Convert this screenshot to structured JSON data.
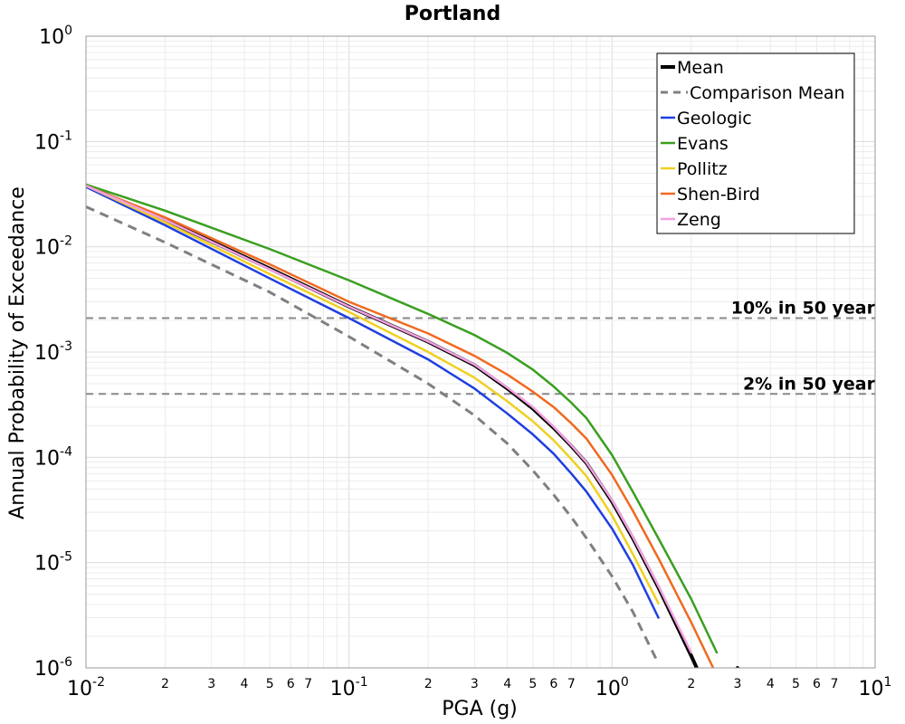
{
  "chart_data": {
    "type": "line",
    "title": "Portland",
    "xlabel": "PGA (g)",
    "ylabel": "Annual Probability of Exceedance",
    "x_scale": "log",
    "y_scale": "log",
    "xlim": [
      0.01,
      10
    ],
    "ylim": [
      1e-06,
      1
    ],
    "grid": true,
    "legend_position": "top-right",
    "x_major_ticks": [
      {
        "base": "10",
        "exp": "-2",
        "value": 0.01
      },
      {
        "base": "10",
        "exp": "-1",
        "value": 0.1
      },
      {
        "base": "10",
        "exp": "0",
        "value": 1
      },
      {
        "base": "10",
        "exp": "1",
        "value": 10
      }
    ],
    "y_major_ticks": [
      {
        "base": "10",
        "exp": "0",
        "value": 1
      },
      {
        "base": "10",
        "exp": "-1",
        "value": 0.1
      },
      {
        "base": "10",
        "exp": "-2",
        "value": 0.01
      },
      {
        "base": "10",
        "exp": "-3",
        "value": 0.001
      },
      {
        "base": "10",
        "exp": "-4",
        "value": 0.0001
      },
      {
        "base": "10",
        "exp": "-5",
        "value": 1e-05
      },
      {
        "base": "10",
        "exp": "-6",
        "value": 1e-06
      }
    ],
    "x_minor_tick_labels": [
      "2",
      "3",
      "4",
      "5",
      "6",
      "7"
    ],
    "reference_lines": [
      {
        "label": "10% in 50 year",
        "y": 0.0021,
        "color": "#888888"
      },
      {
        "label": "2% in 50 year",
        "y": 0.0004,
        "color": "#888888"
      }
    ],
    "x": [
      0.01,
      0.02,
      0.05,
      0.1,
      0.2,
      0.3,
      0.4,
      0.5,
      0.6,
      0.7,
      0.8,
      1.0,
      1.2,
      1.5,
      2.0,
      2.5,
      3.0,
      3.5
    ],
    "series": [
      {
        "name": "Mean",
        "color": "#000000",
        "dash": "solid",
        "width": 4,
        "values": [
          0.038,
          0.018,
          0.0062,
          0.0027,
          0.00125,
          0.00075,
          0.00045,
          0.00029,
          0.00019,
          0.000128,
          8.8e-05,
          3.8e-05,
          1.7e-05,
          5.8e-06,
          1.3e-06,
          3.8e-07,
          1e-06,
          null
        ]
      },
      {
        "name": "Comparison Mean",
        "color": "#808080",
        "dash": "dashed",
        "width": 3,
        "values": [
          0.024,
          0.011,
          0.0037,
          0.0014,
          0.0005,
          0.00025,
          0.000135,
          7.5e-05,
          4.4e-05,
          2.7e-05,
          1.7e-05,
          7.4e-06,
          3.4e-06,
          1.1e-06,
          null,
          null,
          null,
          null
        ]
      },
      {
        "name": "Geologic",
        "color": "#1f3fe0",
        "dash": "solid",
        "width": 2.5,
        "values": [
          0.037,
          0.016,
          0.005,
          0.0021,
          0.00085,
          0.00045,
          0.00026,
          0.000165,
          0.000108,
          7e-05,
          4.7e-05,
          2.1e-05,
          9.5e-06,
          3e-06,
          null,
          null,
          null,
          null
        ]
      },
      {
        "name": "Evans",
        "color": "#3a9f20",
        "dash": "solid",
        "width": 2.5,
        "values": [
          0.039,
          0.022,
          0.0095,
          0.0048,
          0.0023,
          0.00145,
          0.00098,
          0.00068,
          0.00047,
          0.00033,
          0.000235,
          0.000105,
          4.7e-05,
          1.7e-05,
          4.5e-06,
          1.4e-06,
          null,
          null
        ]
      },
      {
        "name": "Pollitz",
        "color": "#f0d020",
        "dash": "solid",
        "width": 2.5,
        "values": [
          0.038,
          0.017,
          0.0055,
          0.0024,
          0.001,
          0.00057,
          0.00034,
          0.00022,
          0.000145,
          9.6e-05,
          6.6e-05,
          2.8e-05,
          1.2e-05,
          4.1e-06,
          null,
          null,
          null,
          null
        ]
      },
      {
        "name": "Shen-Bird",
        "color": "#f06a20",
        "dash": "solid",
        "width": 2.5,
        "values": [
          0.038,
          0.019,
          0.0068,
          0.003,
          0.0015,
          0.00092,
          0.00061,
          0.00042,
          0.0003,
          0.00021,
          0.00015,
          6.8e-05,
          3.1e-05,
          1.1e-05,
          2.7e-06,
          8.5e-07,
          null,
          null
        ]
      },
      {
        "name": "Zeng",
        "color": "#f2a0e0",
        "dash": "solid",
        "width": 2.5,
        "values": [
          0.038,
          0.018,
          0.0061,
          0.0027,
          0.00126,
          0.00076,
          0.00046,
          0.0003,
          0.000195,
          0.00013,
          8.9e-05,
          3.9e-05,
          1.75e-05,
          6e-06,
          1.4e-06,
          null,
          null,
          null
        ]
      }
    ]
  }
}
